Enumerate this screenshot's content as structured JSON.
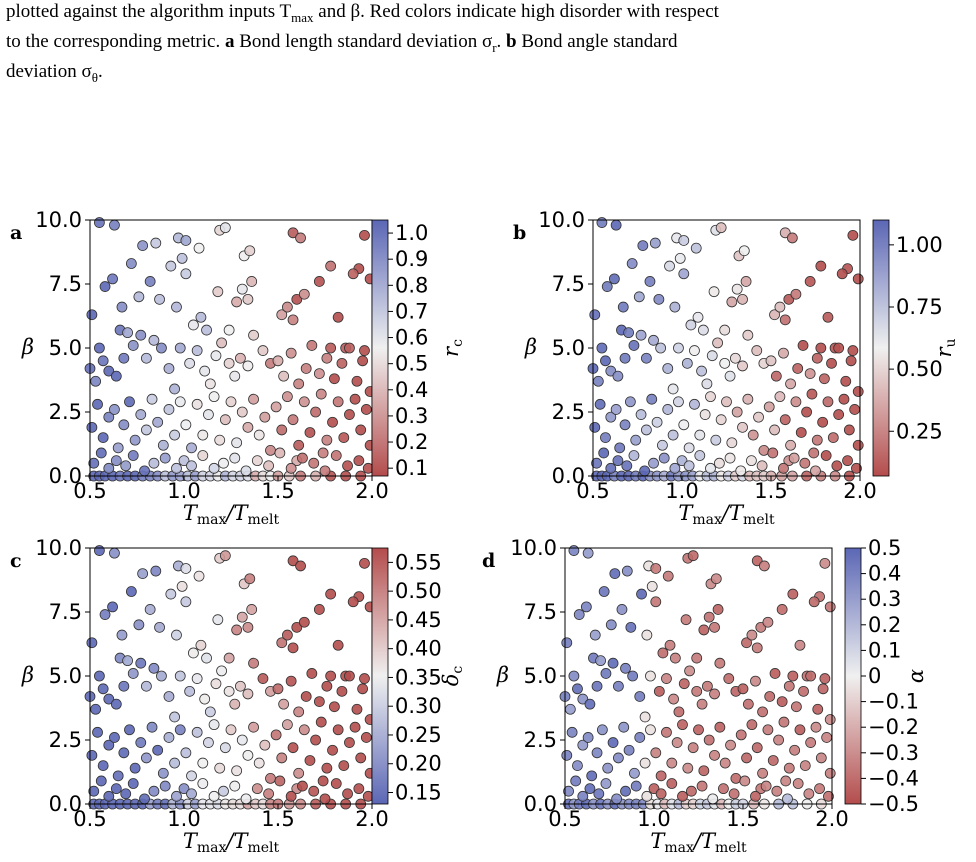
{
  "caption": {
    "line1": "plotted against the algorithm inputs T",
    "line1_sub": "max",
    "line1_b": " and β. Red colors indicate high disorder with respect",
    "line2_a": "to the corresponding metric. ",
    "line2_bold_a": "a",
    "line2_b": " Bond length standard deviation σ",
    "line2_sub": "r",
    "line2_c": ". ",
    "line2_bold_b": "b",
    "line2_d": " Bond angle standard",
    "line3": "deviation σ",
    "line3_sub": "θ",
    "line3_end": "."
  },
  "colors": {
    "blue": "#5b67b5",
    "white": "#f0f0f0",
    "red": "#b44c4c",
    "edge": "#333333"
  },
  "chart_data": [
    {
      "type": "scatter",
      "panel": "a",
      "xlabel": "T_max/T_melt",
      "ylabel": "β",
      "xlim": [
        0.5,
        2.0
      ],
      "ylim": [
        0.0,
        10.0
      ],
      "xticks": [
        "0.5",
        "1.0",
        "1.5",
        "2.0"
      ],
      "yticks": [
        "0.0",
        "2.5",
        "5.0",
        "7.5",
        "10.0"
      ],
      "colorbar": {
        "label": "r_c",
        "range": [
          0.07,
          1.05
        ],
        "ticks": [
          "0.1",
          "0.2",
          "0.3",
          "0.4",
          "0.5",
          "0.6",
          "0.7",
          "0.8",
          "0.9",
          "1.0"
        ],
        "tick_values": [
          0.1,
          0.2,
          0.3,
          0.4,
          0.5,
          0.6,
          0.7,
          0.8,
          0.9,
          1.0
        ],
        "low_color": "red",
        "high_color": "blue"
      },
      "color_rule": "decreasing_with_x"
    },
    {
      "type": "scatter",
      "panel": "b",
      "xlabel": "T_max/T_melt",
      "ylabel": "β",
      "xlim": [
        0.5,
        2.0
      ],
      "ylim": [
        0.0,
        10.0
      ],
      "xticks": [
        "0.5",
        "1.0",
        "1.5",
        "2.0"
      ],
      "yticks": [
        "0.0",
        "2.5",
        "5.0",
        "7.5",
        "10.0"
      ],
      "colorbar": {
        "label": "r_u",
        "range": [
          0.07,
          1.1
        ],
        "ticks": [
          "0.25",
          "0.50",
          "0.75",
          "1.00"
        ],
        "tick_values": [
          0.25,
          0.5,
          0.75,
          1.0
        ],
        "low_color": "red",
        "high_color": "blue"
      },
      "color_rule": "decreasing_with_x"
    },
    {
      "type": "scatter",
      "panel": "c",
      "xlabel": "T_max/T_melt",
      "ylabel": "β",
      "xlim": [
        0.5,
        2.0
      ],
      "ylim": [
        0.0,
        10.0
      ],
      "xticks": [
        "0.5",
        "1.0",
        "1.5",
        "2.0"
      ],
      "yticks": [
        "0.0",
        "2.5",
        "5.0",
        "7.5",
        "10.0"
      ],
      "colorbar": {
        "label": "δ_c",
        "range": [
          0.13,
          0.575
        ],
        "ticks": [
          "0.15",
          "0.20",
          "0.25",
          "0.30",
          "0.35",
          "0.40",
          "0.45",
          "0.50",
          "0.55"
        ],
        "tick_values": [
          0.15,
          0.2,
          0.25,
          0.3,
          0.35,
          0.4,
          0.45,
          0.5,
          0.55
        ],
        "low_color": "blue",
        "high_color": "red"
      },
      "color_rule": "increasing_with_x"
    },
    {
      "type": "scatter",
      "panel": "d",
      "xlabel": "T_max/T_melt",
      "ylabel": "β",
      "xlim": [
        0.5,
        2.0
      ],
      "ylim": [
        0.0,
        10.0
      ],
      "xticks": [
        "0.5",
        "1.0",
        "1.5",
        "2.0"
      ],
      "yticks": [
        "0.0",
        "2.5",
        "5.0",
        "7.5",
        "10.0"
      ],
      "colorbar": {
        "label": "α",
        "range": [
          -0.5,
          0.5
        ],
        "ticks": [
          "−0.5",
          "−0.4",
          "−0.3",
          "−0.2",
          "−0.1",
          "0",
          "0.1",
          "0.2",
          "0.3",
          "0.4",
          "0.5"
        ],
        "tick_values": [
          -0.5,
          -0.4,
          -0.3,
          -0.2,
          -0.1,
          0,
          0.1,
          0.2,
          0.3,
          0.4,
          0.5
        ],
        "low_color": "red",
        "high_color": "blue"
      },
      "color_rule": "sharp_decreasing_with_x"
    }
  ],
  "points": [
    [
      0.52,
      0.0
    ],
    [
      0.55,
      0.0
    ],
    [
      0.58,
      0.0
    ],
    [
      0.62,
      0.0
    ],
    [
      0.66,
      0.0
    ],
    [
      0.7,
      0.0
    ],
    [
      0.74,
      0.0
    ],
    [
      0.78,
      0.0
    ],
    [
      0.82,
      0.0
    ],
    [
      0.86,
      0.0
    ],
    [
      0.9,
      0.0
    ],
    [
      0.94,
      0.0
    ],
    [
      0.98,
      0.0
    ],
    [
      1.02,
      0.0
    ],
    [
      1.06,
      0.0
    ],
    [
      1.1,
      0.0
    ],
    [
      1.14,
      0.0
    ],
    [
      1.18,
      0.0
    ],
    [
      1.22,
      0.0
    ],
    [
      1.26,
      0.0
    ],
    [
      1.3,
      0.0
    ],
    [
      1.34,
      0.0
    ],
    [
      1.38,
      0.0
    ],
    [
      1.42,
      0.0
    ],
    [
      1.46,
      0.0
    ],
    [
      1.5,
      0.0
    ],
    [
      1.56,
      0.0
    ],
    [
      1.62,
      0.0
    ],
    [
      1.7,
      0.0
    ],
    [
      1.78,
      0.0
    ],
    [
      1.86,
      0.0
    ],
    [
      1.94,
      0.0
    ],
    [
      0.55,
      9.9
    ],
    [
      0.63,
      9.8
    ],
    [
      0.78,
      9.0
    ],
    [
      0.85,
      9.1
    ],
    [
      0.97,
      9.3
    ],
    [
      1.01,
      9.2
    ],
    [
      1.08,
      8.9
    ],
    [
      1.19,
      9.6
    ],
    [
      1.22,
      9.7
    ],
    [
      1.32,
      8.6
    ],
    [
      1.35,
      8.8
    ],
    [
      1.58,
      9.5
    ],
    [
      1.62,
      9.3
    ],
    [
      1.78,
      8.2
    ],
    [
      1.96,
      9.4
    ],
    [
      1.99,
      7.7
    ],
    [
      1.93,
      8.1
    ],
    [
      0.51,
      6.3
    ],
    [
      0.58,
      7.4
    ],
    [
      0.62,
      7.7
    ],
    [
      0.67,
      6.6
    ],
    [
      0.72,
      8.3
    ],
    [
      0.76,
      7.0
    ],
    [
      0.82,
      7.6
    ],
    [
      0.87,
      6.9
    ],
    [
      0.93,
      8.2
    ],
    [
      0.96,
      6.6
    ],
    [
      0.99,
      8.5
    ],
    [
      1.01,
      7.9
    ],
    [
      1.05,
      5.9
    ],
    [
      1.09,
      6.2
    ],
    [
      1.12,
      5.7
    ],
    [
      1.18,
      7.2
    ],
    [
      1.24,
      5.7
    ],
    [
      1.28,
      6.8
    ],
    [
      1.31,
      7.3
    ],
    [
      1.34,
      6.9
    ],
    [
      1.36,
      7.6
    ],
    [
      1.52,
      6.3
    ],
    [
      1.55,
      6.6
    ],
    [
      1.58,
      6.1
    ],
    [
      1.6,
      6.9
    ],
    [
      1.64,
      7.1
    ],
    [
      1.72,
      7.6
    ],
    [
      1.82,
      6.2
    ],
    [
      1.86,
      5.0
    ],
    [
      1.9,
      7.9
    ],
    [
      0.5,
      4.2
    ],
    [
      0.53,
      3.7
    ],
    [
      0.55,
      5.0
    ],
    [
      0.57,
      4.5
    ],
    [
      0.6,
      4.1
    ],
    [
      0.64,
      3.9
    ],
    [
      0.66,
      5.7
    ],
    [
      0.68,
      4.6
    ],
    [
      0.7,
      5.6
    ],
    [
      0.73,
      5.1
    ],
    [
      0.77,
      5.5
    ],
    [
      0.8,
      4.6
    ],
    [
      0.84,
      5.3
    ],
    [
      0.88,
      5.0
    ],
    [
      0.92,
      4.2
    ],
    [
      0.95,
      3.4
    ],
    [
      0.98,
      5.0
    ],
    [
      1.03,
      4.4
    ],
    [
      1.07,
      4.9
    ],
    [
      1.11,
      4.1
    ],
    [
      1.14,
      3.6
    ],
    [
      1.17,
      4.7
    ],
    [
      1.2,
      5.2
    ],
    [
      1.24,
      4.4
    ],
    [
      1.27,
      3.9
    ],
    [
      1.3,
      4.6
    ],
    [
      1.34,
      4.3
    ],
    [
      1.37,
      5.5
    ],
    [
      1.42,
      4.9
    ],
    [
      1.46,
      4.4
    ],
    [
      1.5,
      4.5
    ],
    [
      1.53,
      3.9
    ],
    [
      1.57,
      4.8
    ],
    [
      1.61,
      3.6
    ],
    [
      1.65,
      4.2
    ],
    [
      1.68,
      5.1
    ],
    [
      1.72,
      4.0
    ],
    [
      1.76,
      4.6
    ],
    [
      1.8,
      3.8
    ],
    [
      1.84,
      4.4
    ],
    [
      1.88,
      5.0
    ],
    [
      1.92,
      3.7
    ],
    [
      1.96,
      4.9
    ],
    [
      1.99,
      3.3
    ],
    [
      1.78,
      5.0
    ],
    [
      1.95,
      4.5
    ],
    [
      0.51,
      1.9
    ],
    [
      0.54,
      2.8
    ],
    [
      0.57,
      1.5
    ],
    [
      0.6,
      2.3
    ],
    [
      0.63,
      2.6
    ],
    [
      0.65,
      1.1
    ],
    [
      0.68,
      2.0
    ],
    [
      0.71,
      2.9
    ],
    [
      0.74,
      1.4
    ],
    [
      0.77,
      2.4
    ],
    [
      0.8,
      1.8
    ],
    [
      0.83,
      3.0
    ],
    [
      0.86,
      2.1
    ],
    [
      0.89,
      1.2
    ],
    [
      0.92,
      2.6
    ],
    [
      0.95,
      1.6
    ],
    [
      0.98,
      2.9
    ],
    [
      1.01,
      2.0
    ],
    [
      1.04,
      1.1
    ],
    [
      1.07,
      2.8
    ],
    [
      1.1,
      1.6
    ],
    [
      1.13,
      2.4
    ],
    [
      1.16,
      3.1
    ],
    [
      1.19,
      1.4
    ],
    [
      1.22,
      2.2
    ],
    [
      1.25,
      2.9
    ],
    [
      1.28,
      1.3
    ],
    [
      1.31,
      2.5
    ],
    [
      1.34,
      1.9
    ],
    [
      1.37,
      3.0
    ],
    [
      1.4,
      1.6
    ],
    [
      1.43,
      2.3
    ],
    [
      1.46,
      1.0
    ],
    [
      1.49,
      2.7
    ],
    [
      1.52,
      1.8
    ],
    [
      1.55,
      3.1
    ],
    [
      1.58,
      2.2
    ],
    [
      1.61,
      1.2
    ],
    [
      1.64,
      2.9
    ],
    [
      1.67,
      1.7
    ],
    [
      1.7,
      2.5
    ],
    [
      1.73,
      3.2
    ],
    [
      1.76,
      1.4
    ],
    [
      1.79,
      2.1
    ],
    [
      1.82,
      2.9
    ],
    [
      1.85,
      1.5
    ],
    [
      1.88,
      2.4
    ],
    [
      1.91,
      3.0
    ],
    [
      1.94,
      1.8
    ],
    [
      1.97,
      2.6
    ],
    [
      1.99,
      1.2
    ],
    [
      1.74,
      0.9
    ],
    [
      1.6,
      0.6
    ],
    [
      0.52,
      0.5
    ],
    [
      0.56,
      0.9
    ],
    [
      0.6,
      0.3
    ],
    [
      0.64,
      0.6
    ],
    [
      0.69,
      0.4
    ],
    [
      0.73,
      0.8
    ],
    [
      0.79,
      0.2
    ],
    [
      0.84,
      0.5
    ],
    [
      0.9,
      0.7
    ],
    [
      0.96,
      0.3
    ],
    [
      1.0,
      0.6
    ],
    [
      1.04,
      0.4
    ],
    [
      1.1,
      0.8
    ],
    [
      1.16,
      0.3
    ],
    [
      1.21,
      0.5
    ],
    [
      1.27,
      0.7
    ],
    [
      1.33,
      0.2
    ],
    [
      1.39,
      0.6
    ],
    [
      1.45,
      0.4
    ],
    [
      1.51,
      0.9
    ],
    [
      1.57,
      0.3
    ],
    [
      1.63,
      0.7
    ],
    [
      1.69,
      0.5
    ],
    [
      1.75,
      0.2
    ],
    [
      1.81,
      0.8
    ],
    [
      1.87,
      0.4
    ],
    [
      1.93,
      0.6
    ],
    [
      1.98,
      0.3
    ]
  ],
  "panel_labels": [
    "a",
    "b",
    "c",
    "d"
  ]
}
